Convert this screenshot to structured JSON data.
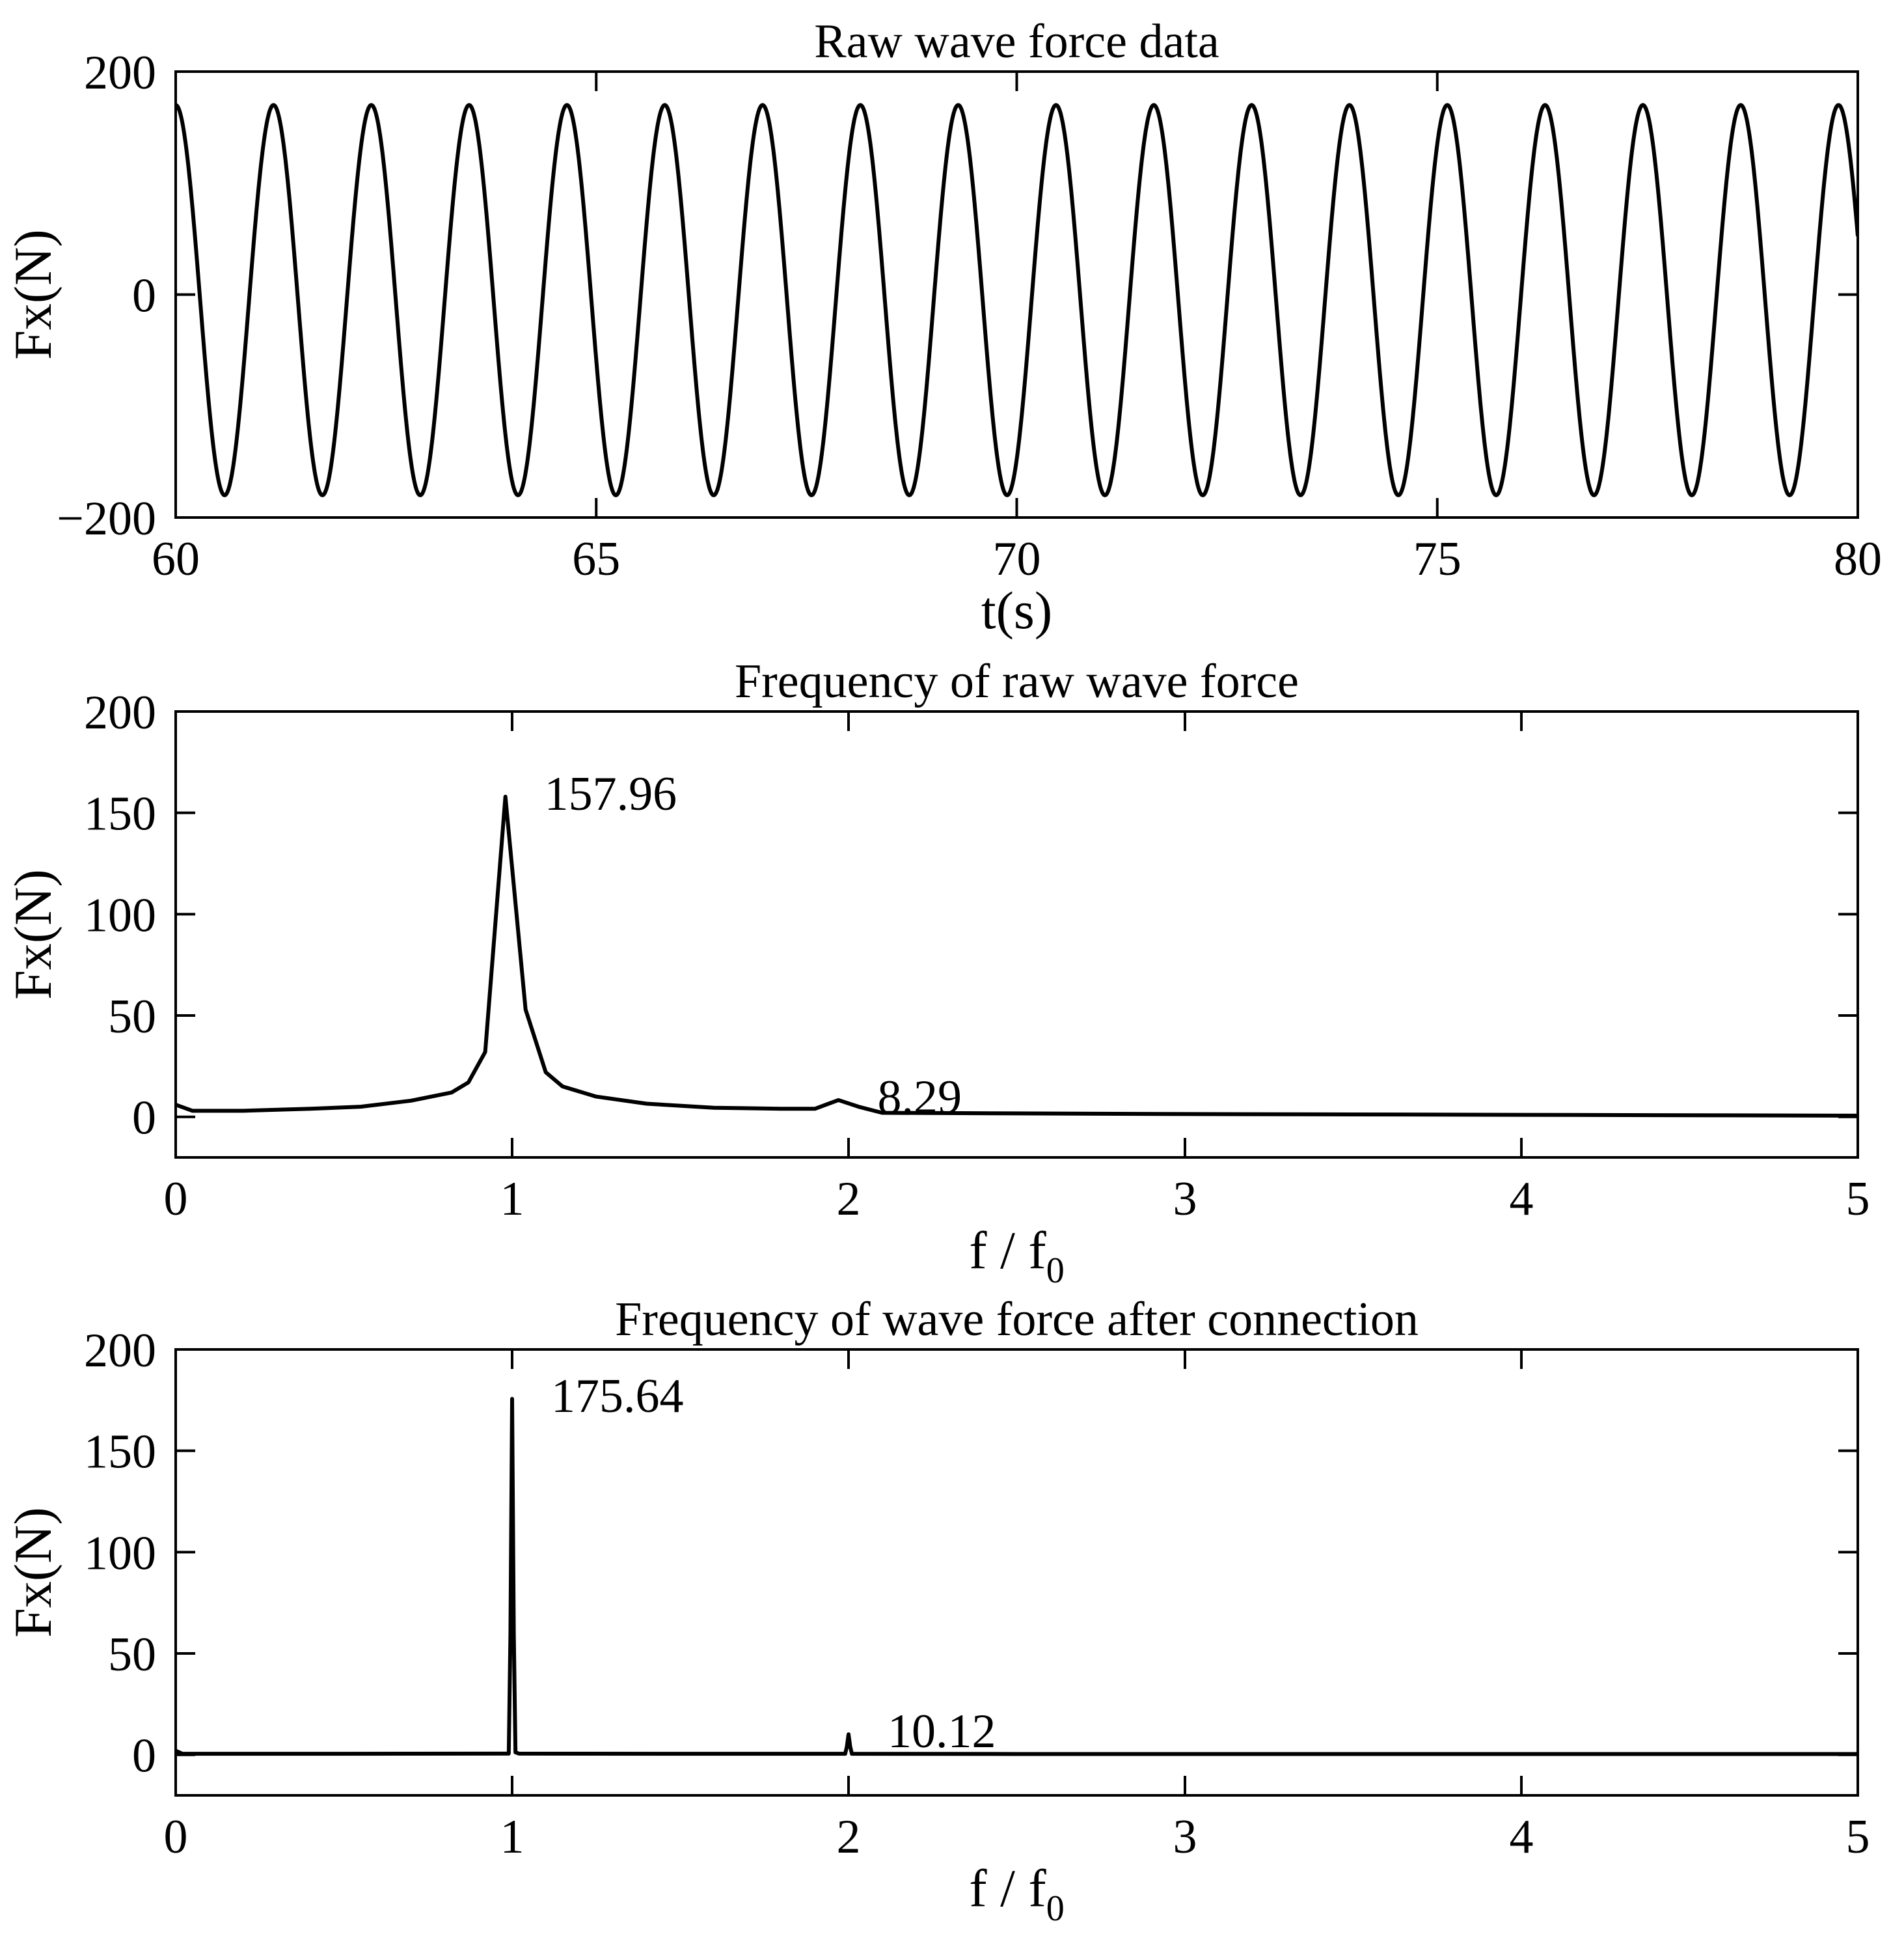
{
  "chart_data": [
    {
      "type": "line",
      "title": "Raw wave force data",
      "xlabel": "t(s)",
      "ylabel": "Fx(N)",
      "xlim": [
        60,
        80
      ],
      "ylim": [
        -200,
        200
      ],
      "xticks": [
        60,
        65,
        70,
        75,
        80
      ],
      "yticks": [
        -200,
        0,
        200
      ],
      "xtick_labels": [
        "60",
        "65",
        "70",
        "75",
        "80"
      ],
      "ytick_labels": [
        "−200",
        "0",
        "200"
      ],
      "grid": false,
      "series": [
        {
          "signal": "sinusoid",
          "amplitude_high": 170,
          "amplitude_low": -180,
          "period": 1.163,
          "first_peak_t": 60.0,
          "t_start": 60,
          "t_end": 80
        }
      ]
    },
    {
      "type": "line",
      "title": "Frequency of raw wave force",
      "xlabel": "f / f",
      "xlabel_sub": "0",
      "ylabel": "Fx(N)",
      "xlim": [
        0,
        5
      ],
      "ylim": [
        -20,
        200
      ],
      "xticks": [
        0,
        1,
        2,
        3,
        4,
        5
      ],
      "yticks": [
        0,
        50,
        100,
        150,
        200
      ],
      "xtick_labels": [
        "0",
        "1",
        "2",
        "3",
        "4",
        "5"
      ],
      "ytick_labels": [
        "0",
        "50",
        "100",
        "150",
        "200"
      ],
      "grid": false,
      "series": [
        {
          "x": [
            0,
            0.05,
            0.2,
            0.4,
            0.55,
            0.7,
            0.82,
            0.87,
            0.92,
            0.98,
            1.04,
            1.1,
            1.15,
            1.25,
            1.4,
            1.6,
            1.8,
            1.9,
            1.97,
            2.03,
            2.1,
            2.5,
            3.0,
            3.5,
            4.0,
            4.5,
            5.0
          ],
          "y": [
            6,
            3,
            3,
            4,
            5,
            8,
            12,
            17,
            32,
            157.96,
            53,
            22,
            15,
            10,
            6.5,
            4.5,
            4,
            4,
            8.29,
            5,
            2,
            1.7,
            1.4,
            1.2,
            1,
            0.8,
            0.6
          ]
        }
      ],
      "annotations": [
        {
          "text": "157.96",
          "x": 0.98,
          "y": 157.96
        },
        {
          "text": "8.29",
          "x": 1.97,
          "y": 8.29
        }
      ]
    },
    {
      "type": "line",
      "title": "Frequency of wave force after connection",
      "xlabel": "f / f",
      "xlabel_sub": "0",
      "ylabel": "Fx(N)",
      "xlim": [
        0,
        5
      ],
      "ylim": [
        -20,
        200
      ],
      "xticks": [
        0,
        1,
        2,
        3,
        4,
        5
      ],
      "yticks": [
        0,
        50,
        100,
        150,
        200
      ],
      "xtick_labels": [
        "0",
        "1",
        "2",
        "3",
        "4",
        "5"
      ],
      "ytick_labels": [
        "0",
        "50",
        "100",
        "150",
        "200"
      ],
      "grid": false,
      "series": [
        {
          "x": [
            0,
            0.02,
            0.5,
            0.99,
            0.995,
            1.0,
            1.005,
            1.01,
            1.02,
            1.5,
            1.99,
            1.995,
            2.0,
            2.005,
            2.01,
            2.5,
            3.0,
            4.0,
            5.0
          ],
          "y": [
            2,
            0.5,
            0.5,
            0.6,
            60,
            175.64,
            60,
            1.2,
            0.6,
            0.5,
            0.5,
            4,
            10.12,
            4,
            0.5,
            0.4,
            0.4,
            0.4,
            0.4
          ]
        }
      ],
      "annotations": [
        {
          "text": "175.64",
          "x": 1.0,
          "y": 175.64
        },
        {
          "text": "10.12",
          "x": 2.0,
          "y": 10.12
        }
      ]
    }
  ]
}
